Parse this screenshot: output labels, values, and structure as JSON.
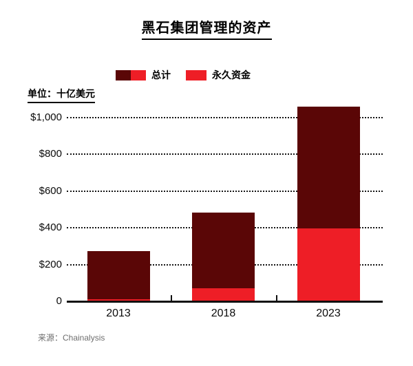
{
  "title": "黑石集团管理的资产",
  "legend": {
    "items": [
      {
        "label": "总计",
        "swatch": "two-tone-dark-red-and-red"
      },
      {
        "label": "永久资金",
        "swatch": "red"
      }
    ]
  },
  "unit_label": "单位：十亿美元",
  "source": "来源：Chainalysis",
  "colors": {
    "total_dark_red": "#5a0606",
    "permanent_red": "#ee1e26",
    "axis_black": "#0f0f0f",
    "source_gray": "#6e6e6e",
    "background": "#ffffff"
  },
  "chart_data": {
    "type": "bar",
    "title": "黑石集团管理的资产",
    "unit": "单位：十亿美元",
    "categories": [
      "2013",
      "2018",
      "2023"
    ],
    "series": [
      {
        "name": "总计",
        "color": "#5a0606",
        "values": [
          275,
          485,
          1060
        ]
      },
      {
        "name": "永久资金",
        "color": "#ee1e26",
        "values": [
          15,
          75,
          400
        ]
      }
    ],
    "bar_style": "overlay: permanent-capital (red) drawn at the base of total (dark red)",
    "y_ticks": [
      {
        "value": 0,
        "label": "0"
      },
      {
        "value": 200,
        "label": "$200"
      },
      {
        "value": 400,
        "label": "$400"
      },
      {
        "value": 600,
        "label": "$600"
      },
      {
        "value": 800,
        "label": "$800"
      },
      {
        "value": 1000,
        "label": "$1,000"
      }
    ],
    "ylim": [
      0,
      1085
    ],
    "grid": "dotted-horizontal",
    "legend_position": "top",
    "source": "来源：Chainalysis"
  }
}
